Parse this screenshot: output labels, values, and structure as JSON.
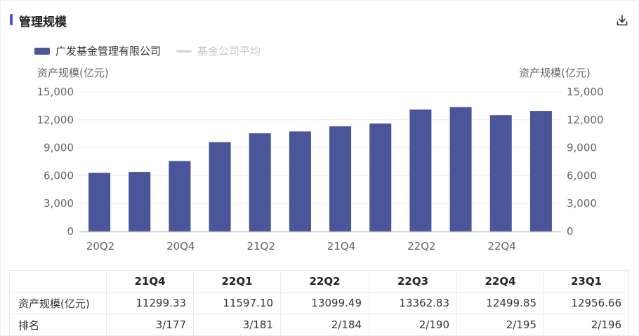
{
  "header": {
    "title": "管理规模"
  },
  "legend": {
    "series1": "广发基金管理有限公司",
    "series2": "基金公司平均"
  },
  "axes": {
    "left_title": "资产规模(亿元)",
    "right_title": "资产规模(亿元)"
  },
  "chart_data": {
    "type": "bar",
    "categories": [
      "20Q2",
      "20Q3",
      "20Q4",
      "21Q1",
      "21Q2",
      "21Q3",
      "21Q4",
      "22Q1",
      "22Q2",
      "22Q3",
      "22Q4",
      "23Q1"
    ],
    "visible_x_ticks": [
      "20Q2",
      "20Q4",
      "21Q2",
      "21Q4",
      "22Q2",
      "22Q4"
    ],
    "series": [
      {
        "name": "广发基金管理有限公司",
        "values": [
          6300,
          6400,
          7570,
          9600,
          10550,
          10750,
          11299.33,
          11597.1,
          13099.49,
          13362.83,
          12499.85,
          12956.66
        ]
      }
    ],
    "y_ticks": [
      "0",
      "3,000",
      "6,000",
      "9,000",
      "12,000",
      "15,000"
    ],
    "ylim": [
      0,
      15000
    ],
    "ylabel": "资产规模(亿元)",
    "colors": {
      "bar": "#4a5699",
      "avg_legend": "#d7d9de",
      "grid": "#e9ecf3",
      "axis": "#bfc4d0"
    },
    "grid": true,
    "legend_position": "top-left"
  },
  "table": {
    "columns": [
      "21Q4",
      "22Q1",
      "22Q2",
      "22Q3",
      "22Q4",
      "23Q1"
    ],
    "rows": [
      {
        "label": "资产规模(亿元)",
        "values": [
          "11299.33",
          "11597.10",
          "13099.49",
          "13362.83",
          "12499.85",
          "12956.66"
        ]
      },
      {
        "label": "排名",
        "values": [
          "3/177",
          "3/181",
          "2/184",
          "2/190",
          "2/195",
          "2/196"
        ]
      }
    ]
  }
}
